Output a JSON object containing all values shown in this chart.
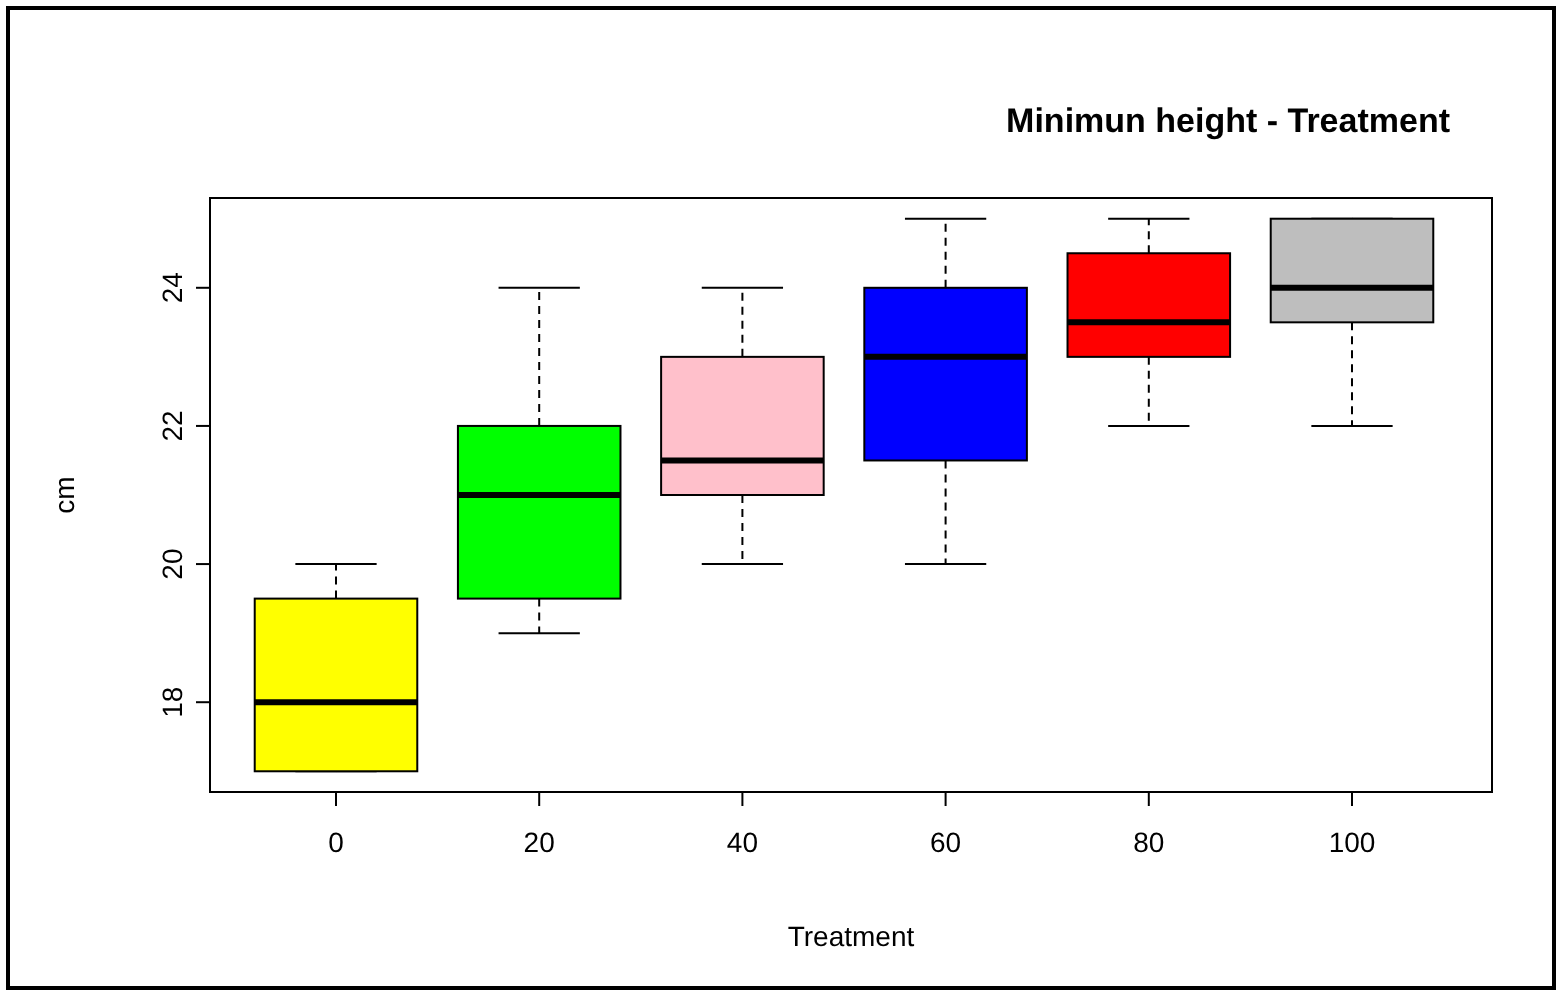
{
  "chart_data": {
    "type": "box",
    "title": "Minimun height - Treatment",
    "xlabel": "Treatment",
    "ylabel": "cm",
    "categories": [
      "0",
      "20",
      "40",
      "60",
      "80",
      "100"
    ],
    "colors": [
      "#ffff00",
      "#00ff00",
      "#ffc0cb",
      "#0000ff",
      "#ff0000",
      "#bebebe"
    ],
    "boxes": [
      {
        "low": 17,
        "q1": 17,
        "median": 18,
        "q3": 19.5,
        "high": 20
      },
      {
        "low": 19,
        "q1": 19.5,
        "median": 21,
        "q3": 22,
        "high": 24
      },
      {
        "low": 20,
        "q1": 21,
        "median": 21.5,
        "q3": 23,
        "high": 24
      },
      {
        "low": 20,
        "q1": 21.5,
        "median": 23,
        "q3": 24,
        "high": 25
      },
      {
        "low": 22,
        "q1": 23,
        "median": 23.5,
        "q3": 24.5,
        "high": 25
      },
      {
        "low": 22,
        "q1": 23.5,
        "median": 24,
        "q3": 25,
        "high": 25
      }
    ],
    "ylim": [
      16.7,
      25.3
    ],
    "yticks": [
      18,
      20,
      22,
      24
    ]
  }
}
